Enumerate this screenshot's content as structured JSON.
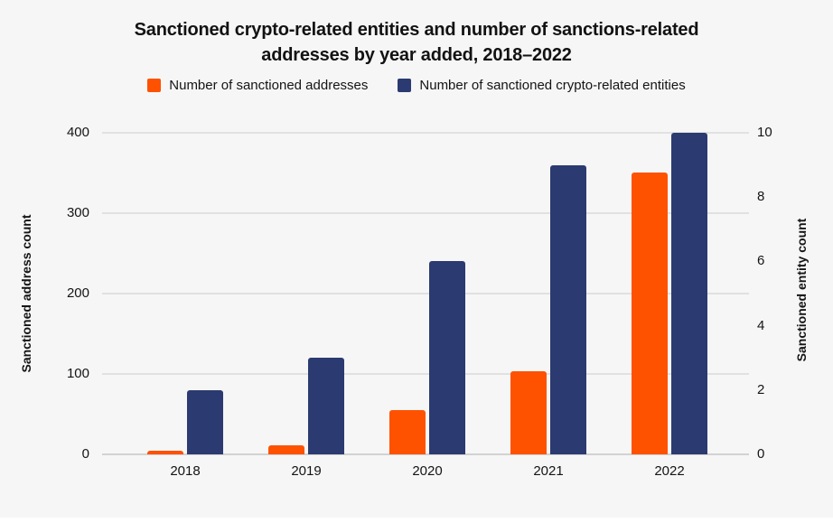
{
  "chart_data": {
    "type": "bar",
    "title": "Sanctioned crypto-related entities and number of sanctions-related addresses by year added, 2018–2022",
    "title_lines": [
      "Sanctioned crypto-related entities and number of sanctions-related",
      "addresses by year added, 2018–2022"
    ],
    "categories": [
      "2018",
      "2019",
      "2020",
      "2021",
      "2022"
    ],
    "series": [
      {
        "name": "Number of sanctioned addresses",
        "axis": "left",
        "color": "#FE5200",
        "values": [
          4,
          11,
          55,
          103,
          350
        ]
      },
      {
        "name": "Number of sanctioned crypto-related entities",
        "axis": "right",
        "color": "#2B3A70",
        "values": [
          2,
          3,
          6,
          9,
          10
        ]
      }
    ],
    "left_axis": {
      "label": "Sanctioned address count",
      "range": [
        0,
        400
      ],
      "ticks": [
        0,
        100,
        200,
        300,
        400
      ]
    },
    "right_axis": {
      "label": "Sanctioned entity count",
      "range": [
        0,
        10
      ],
      "ticks": [
        0,
        2,
        4,
        6,
        8,
        10
      ]
    },
    "grid": true,
    "legend_position": "top",
    "colors": {
      "addresses": "#FE5200",
      "entities": "#2B3A70",
      "background": "#F6F6F6",
      "gridline": "#E1E1E1",
      "baseline": "#D2D2D2",
      "text": "#141414"
    }
  }
}
